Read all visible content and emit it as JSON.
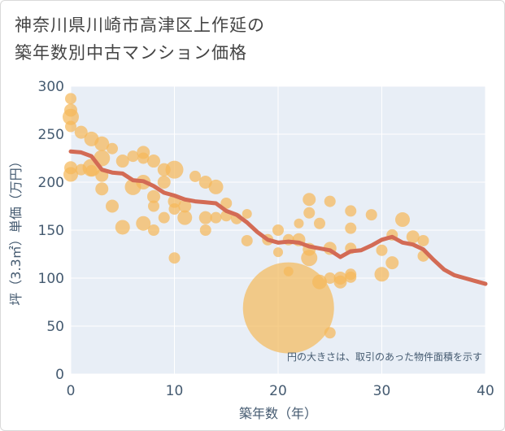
{
  "header": {
    "title_line1": "神奈川県川崎市高津区上作延の",
    "title_line2": "築年数別中古マンション価格"
  },
  "chart_data": {
    "type": "scatter",
    "xlabel": "築年数（年）",
    "ylabel": "坪（3.3㎡）単価（万円）",
    "xlim": [
      0,
      40
    ],
    "ylim": [
      0,
      300
    ],
    "xticks": [
      0,
      10,
      20,
      30,
      40
    ],
    "yticks": [
      0,
      50,
      100,
      150,
      200,
      250,
      300
    ],
    "grid": true,
    "annotation": "円の大きさは、取引のあった物件面積を示す",
    "colors": {
      "bubble": "#f5b95a",
      "line": "#d36b55",
      "plot_bg": "#e8eef6",
      "grid": "#ffffff",
      "axis_text": "#445a70"
    },
    "points": [
      {
        "x": 0,
        "y": 287,
        "s": 7
      },
      {
        "x": 0,
        "y": 275,
        "s": 8
      },
      {
        "x": 0,
        "y": 268,
        "s": 10
      },
      {
        "x": 0,
        "y": 258,
        "s": 7
      },
      {
        "x": 0,
        "y": 215,
        "s": 8
      },
      {
        "x": 0,
        "y": 208,
        "s": 9
      },
      {
        "x": 1,
        "y": 252,
        "s": 8
      },
      {
        "x": 1,
        "y": 213,
        "s": 7
      },
      {
        "x": 2,
        "y": 245,
        "s": 9
      },
      {
        "x": 2,
        "y": 215,
        "s": 11
      },
      {
        "x": 2,
        "y": 212,
        "s": 7
      },
      {
        "x": 3,
        "y": 240,
        "s": 9
      },
      {
        "x": 3,
        "y": 225,
        "s": 10
      },
      {
        "x": 3,
        "y": 207,
        "s": 8
      },
      {
        "x": 3,
        "y": 193,
        "s": 8
      },
      {
        "x": 4,
        "y": 235,
        "s": 7
      },
      {
        "x": 4,
        "y": 175,
        "s": 8
      },
      {
        "x": 5,
        "y": 222,
        "s": 8
      },
      {
        "x": 5,
        "y": 153,
        "s": 9
      },
      {
        "x": 6,
        "y": 227,
        "s": 7
      },
      {
        "x": 6,
        "y": 195,
        "s": 10
      },
      {
        "x": 7,
        "y": 231,
        "s": 8
      },
      {
        "x": 7,
        "y": 225,
        "s": 7
      },
      {
        "x": 7,
        "y": 200,
        "s": 9
      },
      {
        "x": 7,
        "y": 157,
        "s": 9
      },
      {
        "x": 8,
        "y": 222,
        "s": 8
      },
      {
        "x": 8,
        "y": 185,
        "s": 8
      },
      {
        "x": 8,
        "y": 175,
        "s": 7
      },
      {
        "x": 8,
        "y": 150,
        "s": 7
      },
      {
        "x": 9,
        "y": 213,
        "s": 8
      },
      {
        "x": 9,
        "y": 200,
        "s": 8
      },
      {
        "x": 9,
        "y": 163,
        "s": 7
      },
      {
        "x": 10,
        "y": 213,
        "s": 11
      },
      {
        "x": 10,
        "y": 180,
        "s": 8
      },
      {
        "x": 10,
        "y": 172,
        "s": 7
      },
      {
        "x": 10,
        "y": 121,
        "s": 7
      },
      {
        "x": 11,
        "y": 175,
        "s": 8
      },
      {
        "x": 11,
        "y": 163,
        "s": 9
      },
      {
        "x": 12,
        "y": 206,
        "s": 7
      },
      {
        "x": 13,
        "y": 200,
        "s": 8
      },
      {
        "x": 13,
        "y": 163,
        "s": 8
      },
      {
        "x": 13,
        "y": 150,
        "s": 7
      },
      {
        "x": 14,
        "y": 195,
        "s": 9
      },
      {
        "x": 14,
        "y": 163,
        "s": 7
      },
      {
        "x": 15,
        "y": 178,
        "s": 7
      },
      {
        "x": 15,
        "y": 165,
        "s": 7
      },
      {
        "x": 16,
        "y": 162,
        "s": 7
      },
      {
        "x": 17,
        "y": 167,
        "s": 6
      },
      {
        "x": 17,
        "y": 139,
        "s": 7
      },
      {
        "x": 19,
        "y": 140,
        "s": 7
      },
      {
        "x": 20,
        "y": 150,
        "s": 7
      },
      {
        "x": 20,
        "y": 127,
        "s": 6
      },
      {
        "x": 21,
        "y": 140,
        "s": 7
      },
      {
        "x": 21,
        "y": 107,
        "s": 6
      },
      {
        "x": 21,
        "y": 69,
        "s": 56
      },
      {
        "x": 22,
        "y": 157,
        "s": 6
      },
      {
        "x": 22,
        "y": 140,
        "s": 8
      },
      {
        "x": 23,
        "y": 182,
        "s": 8
      },
      {
        "x": 23,
        "y": 168,
        "s": 7
      },
      {
        "x": 23,
        "y": 130,
        "s": 8
      },
      {
        "x": 23,
        "y": 121,
        "s": 10
      },
      {
        "x": 24,
        "y": 157,
        "s": 7
      },
      {
        "x": 24,
        "y": 96,
        "s": 9
      },
      {
        "x": 25,
        "y": 180,
        "s": 7
      },
      {
        "x": 25,
        "y": 131,
        "s": 8
      },
      {
        "x": 25,
        "y": 100,
        "s": 7
      },
      {
        "x": 25,
        "y": 43,
        "s": 7
      },
      {
        "x": 26,
        "y": 100,
        "s": 8
      },
      {
        "x": 26,
        "y": 96,
        "s": 8
      },
      {
        "x": 27,
        "y": 170,
        "s": 7
      },
      {
        "x": 27,
        "y": 152,
        "s": 7
      },
      {
        "x": 27,
        "y": 131,
        "s": 7
      },
      {
        "x": 27,
        "y": 104,
        "s": 7
      },
      {
        "x": 27,
        "y": 101,
        "s": 7
      },
      {
        "x": 29,
        "y": 166,
        "s": 7
      },
      {
        "x": 30,
        "y": 129,
        "s": 7
      },
      {
        "x": 30,
        "y": 104,
        "s": 9
      },
      {
        "x": 31,
        "y": 145,
        "s": 7
      },
      {
        "x": 31,
        "y": 116,
        "s": 8
      },
      {
        "x": 32,
        "y": 161,
        "s": 9
      },
      {
        "x": 33,
        "y": 143,
        "s": 8
      },
      {
        "x": 34,
        "y": 139,
        "s": 7
      },
      {
        "x": 34,
        "y": 123,
        "s": 7
      }
    ],
    "trend": [
      {
        "x": 0,
        "y": 232
      },
      {
        "x": 1,
        "y": 231
      },
      {
        "x": 2,
        "y": 227
      },
      {
        "x": 3,
        "y": 213
      },
      {
        "x": 4,
        "y": 210
      },
      {
        "x": 5,
        "y": 209
      },
      {
        "x": 6,
        "y": 202
      },
      {
        "x": 7,
        "y": 201
      },
      {
        "x": 8,
        "y": 196
      },
      {
        "x": 9,
        "y": 189
      },
      {
        "x": 10,
        "y": 186
      },
      {
        "x": 11,
        "y": 182
      },
      {
        "x": 12,
        "y": 180
      },
      {
        "x": 13,
        "y": 179
      },
      {
        "x": 14,
        "y": 178
      },
      {
        "x": 15,
        "y": 170
      },
      {
        "x": 16,
        "y": 166
      },
      {
        "x": 17,
        "y": 158
      },
      {
        "x": 18,
        "y": 148
      },
      {
        "x": 19,
        "y": 140
      },
      {
        "x": 20,
        "y": 137
      },
      {
        "x": 21,
        "y": 138
      },
      {
        "x": 22,
        "y": 137
      },
      {
        "x": 23,
        "y": 133
      },
      {
        "x": 24,
        "y": 131
      },
      {
        "x": 25,
        "y": 129
      },
      {
        "x": 26,
        "y": 122
      },
      {
        "x": 27,
        "y": 128
      },
      {
        "x": 28,
        "y": 129
      },
      {
        "x": 29,
        "y": 134
      },
      {
        "x": 30,
        "y": 140
      },
      {
        "x": 31,
        "y": 143
      },
      {
        "x": 32,
        "y": 137
      },
      {
        "x": 33,
        "y": 135
      },
      {
        "x": 34,
        "y": 130
      },
      {
        "x": 35,
        "y": 119
      },
      {
        "x": 36,
        "y": 109
      },
      {
        "x": 37,
        "y": 103
      },
      {
        "x": 38,
        "y": 100
      },
      {
        "x": 39,
        "y": 97
      },
      {
        "x": 40,
        "y": 94
      }
    ]
  }
}
